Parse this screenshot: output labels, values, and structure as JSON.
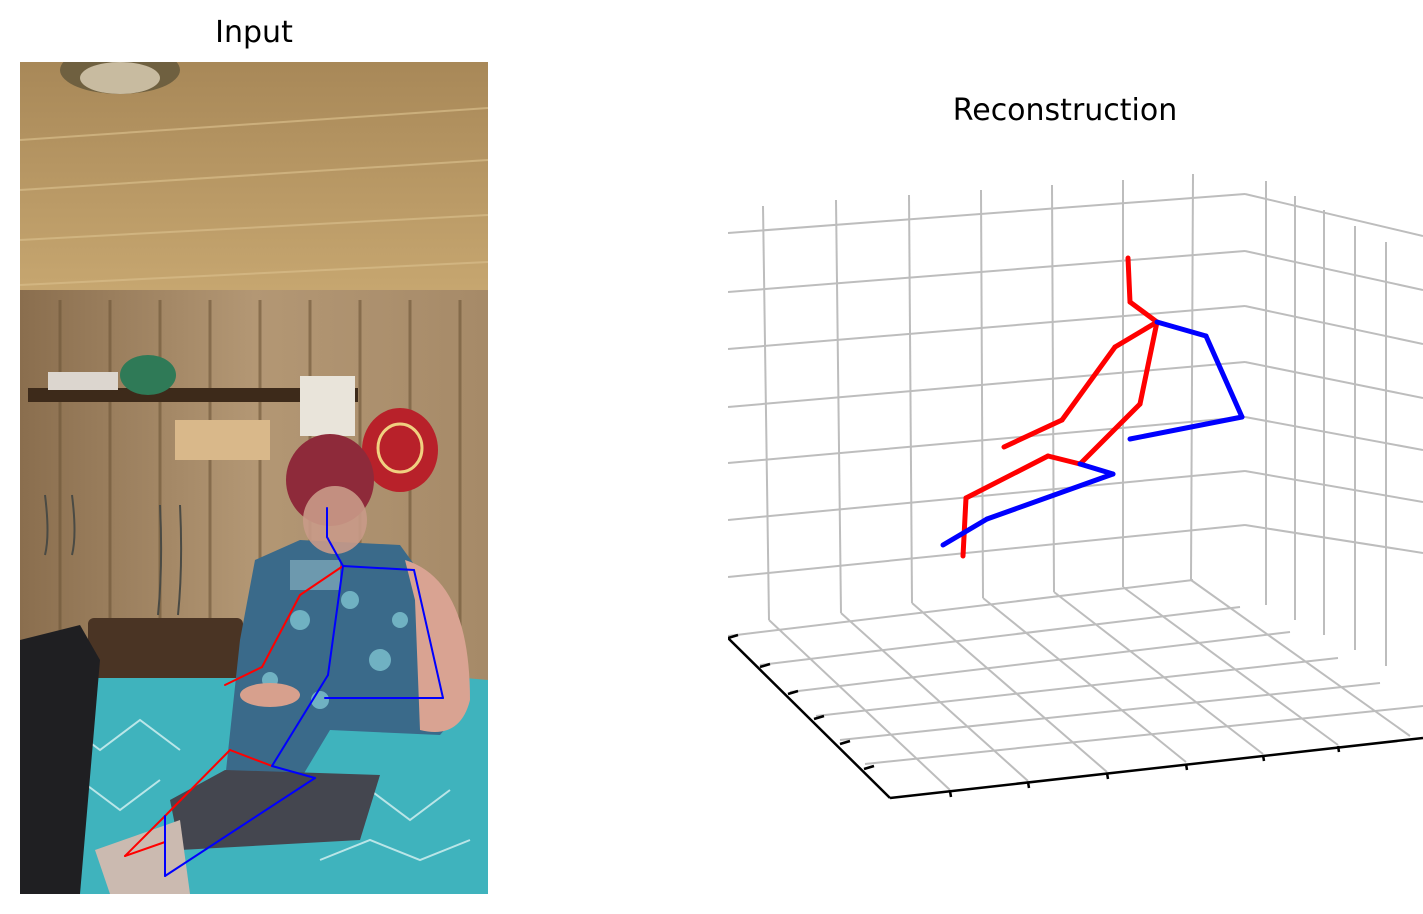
{
  "titles": {
    "input": "Input",
    "reconstruction": "Reconstruction"
  },
  "colors": {
    "right_side": "#ff0000",
    "left_side": "#0000ff",
    "head": "#00aa00",
    "grid": "#bdbdbd",
    "axis": "#000000"
  },
  "skeleton2d": {
    "red": [
      [
        [
          230,
          750
        ],
        [
          272,
          766
        ]
      ],
      [
        [
          230,
          750
        ],
        [
          165,
          816
        ]
      ],
      [
        [
          165,
          816
        ],
        [
          125,
          856
        ]
      ],
      [
        [
          125,
          856
        ],
        [
          165,
          842
        ]
      ],
      [
        [
          343,
          566
        ],
        [
          300,
          595
        ]
      ],
      [
        [
          300,
          595
        ],
        [
          262,
          667
        ]
      ],
      [
        [
          262,
          667
        ],
        [
          225,
          685
        ]
      ]
    ],
    "blue": [
      [
        [
          272,
          766
        ],
        [
          315,
          778
        ]
      ],
      [
        [
          315,
          778
        ],
        [
          165,
          876
        ]
      ],
      [
        [
          165,
          876
        ],
        [
          165,
          816
        ]
      ],
      [
        [
          272,
          766
        ],
        [
          328,
          675
        ]
      ],
      [
        [
          328,
          675
        ],
        [
          343,
          566
        ]
      ],
      [
        [
          343,
          566
        ],
        [
          414,
          570
        ]
      ],
      [
        [
          414,
          570
        ],
        [
          443,
          698
        ]
      ],
      [
        [
          443,
          698
        ],
        [
          325,
          698
        ]
      ]
    ],
    "head": [
      [
        [
          327,
          508
        ],
        [
          327,
          537
        ]
      ],
      [
        [
          327,
          537
        ],
        [
          343,
          566
        ]
      ]
    ]
  },
  "skeleton3d": {
    "red": [
      [
        1128,
        258,
        1130,
        302
      ],
      [
        1130,
        302,
        1157,
        322
      ],
      [
        1157,
        322,
        1115,
        347
      ],
      [
        1115,
        347,
        1062,
        420
      ],
      [
        1062,
        420,
        1004,
        447
      ],
      [
        1157,
        322,
        1140,
        404
      ],
      [
        1140,
        404,
        1080,
        464
      ],
      [
        1080,
        464,
        1048,
        456
      ],
      [
        1048,
        456,
        966,
        498
      ],
      [
        966,
        498,
        963,
        556
      ]
    ],
    "blue": [
      [
        1157,
        322,
        1206,
        336
      ],
      [
        1206,
        336,
        1242,
        417
      ],
      [
        1242,
        417,
        1130,
        439
      ],
      [
        1080,
        464,
        1113,
        474
      ],
      [
        1113,
        474,
        987,
        519
      ],
      [
        987,
        519,
        943,
        545
      ]
    ]
  }
}
